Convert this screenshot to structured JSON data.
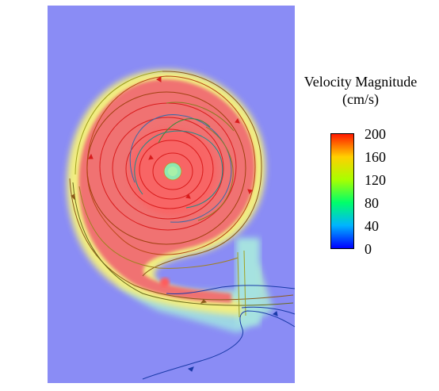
{
  "colorbar": {
    "title_line1": "Velocity Magnitude",
    "title_line2": "(cm/s)",
    "ticks": [
      "200",
      "160",
      "120",
      "80",
      "40",
      "0"
    ],
    "stops": [
      "#ff1a00",
      "#ffd000",
      "#a8ff00",
      "#00ff6a",
      "#00b4ff",
      "#0000ff"
    ]
  },
  "colors": {
    "background_field": "#8a8cf5",
    "core": "#f06c6c",
    "ring_yellow": "#f2ee80",
    "ring_green": "#8ee88e",
    "duct": "#a8e8d8",
    "streamline_red": "#d81c1c",
    "streamline_brown": "#8c5a1a",
    "streamline_blue": "#1a3aa8",
    "streamline_teal": "#1a8c8c",
    "streamline_olive": "#a0a020"
  }
}
